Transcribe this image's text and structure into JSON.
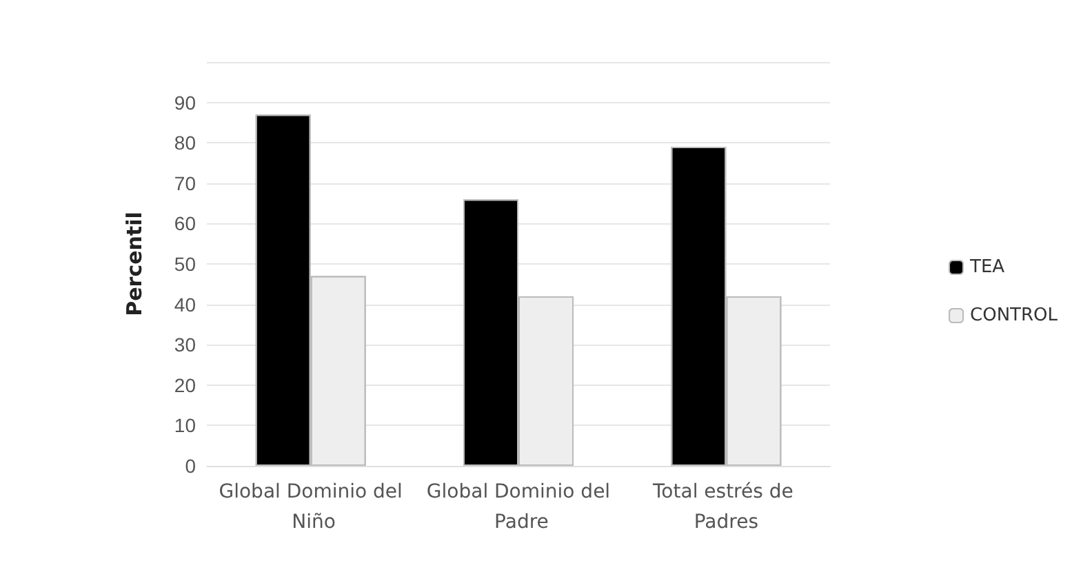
{
  "chart_data": {
    "type": "bar",
    "ylabel": "Percentil",
    "categories": [
      "Global Dominio del Niño",
      "Global Dominio del Padre",
      "Total estrés de Padres"
    ],
    "series": [
      {
        "name": "TEA",
        "color": "#000000",
        "values": [
          87,
          66,
          79
        ]
      },
      {
        "name": "CONTROL",
        "color": "#eeeeee",
        "values": [
          47,
          42,
          42
        ]
      }
    ],
    "ylim": [
      0,
      100
    ],
    "yticks": [
      0,
      10,
      20,
      30,
      40,
      50,
      60,
      70,
      80,
      90,
      {
        "value": 100,
        "label": null
      }
    ],
    "grid": "y",
    "legend": "right"
  }
}
